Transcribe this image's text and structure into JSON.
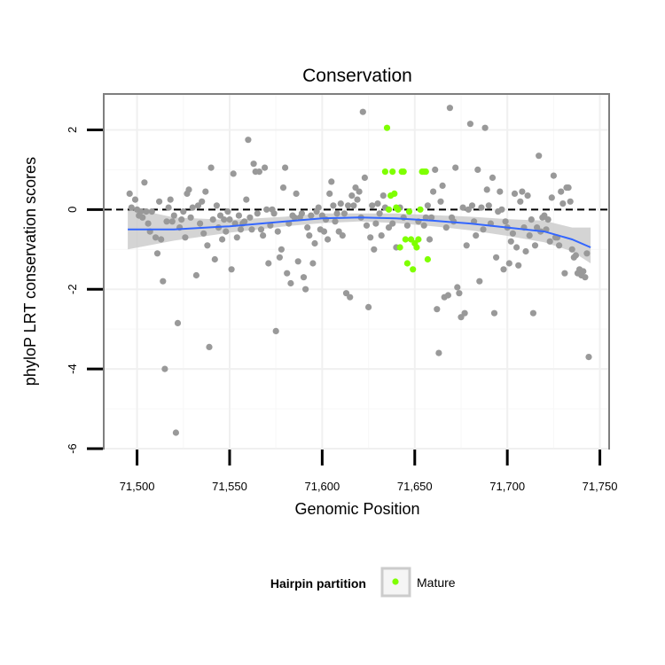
{
  "chart_data": {
    "type": "scatter",
    "title": "Conservation",
    "xlabel": "Genomic Position",
    "ylabel": "phyloP LRT conservation scores",
    "xlim": [
      71482,
      71755
    ],
    "ylim": [
      -6,
      2.9
    ],
    "x_ticks": [
      71500,
      71550,
      71600,
      71650,
      71700,
      71750
    ],
    "x_tick_labels": [
      "71,500",
      "71,550",
      "71,600",
      "71,650",
      "71,700",
      "71,750"
    ],
    "y_ticks": [
      -6,
      -4,
      -2,
      0,
      2
    ],
    "y_tick_labels": [
      "-6",
      "-4",
      "-2",
      "0",
      "2"
    ],
    "reference_line": {
      "y": 0,
      "style": "dashed"
    },
    "grid": true,
    "legend": {
      "title": "Hairpin partition",
      "placement": "bottom",
      "entries": [
        {
          "label": "Mature",
          "color": "#7fff00"
        }
      ]
    },
    "colors": {
      "other": "#999999",
      "mature": "#7fff00",
      "smooth": "#3366ff",
      "ribbon": "#cccccc"
    },
    "series": [
      {
        "points": [
          [
            71496,
            0.4
          ],
          [
            71497,
            0.05
          ],
          [
            71499,
            0.25
          ],
          [
            71500,
            0.0
          ],
          [
            71501,
            -0.15
          ],
          [
            71502,
            -0.05
          ],
          [
            71503,
            -0.2
          ],
          [
            71504,
            0.68
          ],
          [
            71505,
            -0.05
          ],
          [
            71506,
            -0.35
          ],
          [
            71507,
            -0.55
          ],
          [
            71508,
            -0.05
          ],
          [
            71510,
            -0.7
          ],
          [
            71511,
            -1.1
          ],
          [
            71512,
            0.2
          ],
          [
            71513,
            -0.75
          ],
          [
            71514,
            -1.8
          ],
          [
            71515,
            -4.0
          ],
          [
            71516,
            -0.3
          ],
          [
            71517,
            0.05
          ],
          [
            71518,
            0.25
          ],
          [
            71519,
            -0.3
          ],
          [
            71520,
            -0.15
          ],
          [
            71521,
            -5.6
          ],
          [
            71522,
            -2.85
          ],
          [
            71523,
            -0.45
          ],
          [
            71524,
            -0.25
          ],
          [
            71525,
            -0.05
          ],
          [
            71526,
            -0.7
          ],
          [
            71527,
            0.4
          ],
          [
            71528,
            0.5
          ],
          [
            71529,
            -0.2
          ],
          [
            71530,
            0.05
          ],
          [
            71532,
            -1.65
          ],
          [
            71533,
            0.1
          ],
          [
            71534,
            -0.35
          ],
          [
            71535,
            0.2
          ],
          [
            71536,
            -0.6
          ],
          [
            71537,
            0.45
          ],
          [
            71538,
            -0.9
          ],
          [
            71539,
            -3.45
          ],
          [
            71540,
            1.05
          ],
          [
            71541,
            -0.25
          ],
          [
            71542,
            -1.25
          ],
          [
            71543,
            0.1
          ],
          [
            71544,
            -0.45
          ],
          [
            71545,
            -0.15
          ],
          [
            71546,
            -0.75
          ],
          [
            71547,
            -0.25
          ],
          [
            71548,
            -0.55
          ],
          [
            71549,
            -0.05
          ],
          [
            71550,
            -0.25
          ],
          [
            71551,
            -1.5
          ],
          [
            71552,
            0.9
          ],
          [
            71553,
            -0.35
          ],
          [
            71554,
            -0.7
          ],
          [
            71555,
            -0.15
          ],
          [
            71556,
            -0.5
          ],
          [
            71557,
            -0.35
          ],
          [
            71558,
            -0.3
          ],
          [
            71559,
            0.25
          ],
          [
            71560,
            1.75
          ],
          [
            71561,
            -0.2
          ],
          [
            71562,
            -0.5
          ],
          [
            71563,
            1.15
          ],
          [
            71564,
            0.95
          ],
          [
            71565,
            -0.1
          ],
          [
            71566,
            0.95
          ],
          [
            71567,
            -0.5
          ],
          [
            71568,
            -0.65
          ],
          [
            71569,
            1.05
          ],
          [
            71570,
            0.0
          ],
          [
            71571,
            -1.35
          ],
          [
            71572,
            -0.4
          ],
          [
            71573,
            0.0
          ],
          [
            71574,
            -0.1
          ],
          [
            71575,
            -3.05
          ],
          [
            71576,
            -0.55
          ],
          [
            71577,
            -1.2
          ],
          [
            71578,
            -1.0
          ],
          [
            71579,
            0.55
          ],
          [
            71580,
            1.05
          ],
          [
            71581,
            -1.6
          ],
          [
            71582,
            -0.35
          ],
          [
            71583,
            -1.85
          ],
          [
            71584,
            -0.15
          ],
          [
            71585,
            -0.2
          ],
          [
            71586,
            0.4
          ],
          [
            71587,
            -1.3
          ],
          [
            71588,
            -0.2
          ],
          [
            71589,
            -0.1
          ],
          [
            71590,
            -1.7
          ],
          [
            71591,
            -2.0
          ],
          [
            71592,
            -0.45
          ],
          [
            71593,
            -0.65
          ],
          [
            71594,
            -0.15
          ],
          [
            71595,
            -1.35
          ],
          [
            71596,
            -0.85
          ],
          [
            71597,
            -0.05
          ],
          [
            71598,
            0.05
          ],
          [
            71599,
            -0.5
          ],
          [
            71600,
            -0.15
          ],
          [
            71601,
            -0.55
          ],
          [
            71602,
            -0.25
          ],
          [
            71603,
            -0.75
          ],
          [
            71604,
            0.4
          ],
          [
            71605,
            0.7
          ],
          [
            71606,
            0.1
          ],
          [
            71607,
            -0.3
          ],
          [
            71608,
            -0.1
          ],
          [
            71609,
            -0.55
          ],
          [
            71610,
            0.15
          ],
          [
            71611,
            -0.65
          ],
          [
            71612,
            -0.1
          ],
          [
            71613,
            -2.1
          ],
          [
            71614,
            0.1
          ],
          [
            71615,
            -2.2
          ],
          [
            71616,
            0.35
          ],
          [
            71617,
            0.1
          ],
          [
            71618,
            0.55
          ],
          [
            71619,
            0.25
          ],
          [
            71620,
            0.45
          ],
          [
            71621,
            -0.2
          ],
          [
            71622,
            2.45
          ],
          [
            71623,
            0.8
          ],
          [
            71624,
            -0.4
          ],
          [
            71625,
            -2.45
          ],
          [
            71626,
            -0.7
          ],
          [
            71627,
            0.1
          ],
          [
            71628,
            -1.0
          ],
          [
            71629,
            -0.35
          ],
          [
            71630,
            0.15
          ],
          [
            71631,
            -0.1
          ],
          [
            71632,
            -0.65
          ],
          [
            71633,
            0.35
          ],
          [
            71634,
            0.05
          ],
          [
            71636,
            -0.45
          ],
          [
            71638,
            -0.35
          ],
          [
            71640,
            -0.95
          ],
          [
            71642,
            0.05
          ],
          [
            71644,
            -0.2
          ],
          [
            71646,
            -0.4
          ],
          [
            71652,
            -0.3
          ],
          [
            71655,
            -0.4
          ],
          [
            71656,
            -0.2
          ],
          [
            71657,
            0.1
          ],
          [
            71658,
            -0.75
          ],
          [
            71659,
            -0.2
          ],
          [
            71660,
            0.45
          ],
          [
            71661,
            1.0
          ],
          [
            71662,
            -2.5
          ],
          [
            71663,
            -3.6
          ],
          [
            71664,
            0.2
          ],
          [
            71665,
            0.6
          ],
          [
            71666,
            -2.2
          ],
          [
            71667,
            -0.45
          ],
          [
            71668,
            -2.15
          ],
          [
            71669,
            2.55
          ],
          [
            71670,
            -0.2
          ],
          [
            71671,
            -0.3
          ],
          [
            71672,
            1.05
          ],
          [
            71673,
            -1.95
          ],
          [
            71674,
            -2.1
          ],
          [
            71675,
            -2.7
          ],
          [
            71676,
            0.05
          ],
          [
            71677,
            -2.6
          ],
          [
            71678,
            -0.9
          ],
          [
            71679,
            0.0
          ],
          [
            71680,
            2.15
          ],
          [
            71681,
            0.1
          ],
          [
            71682,
            -0.3
          ],
          [
            71683,
            -0.65
          ],
          [
            71684,
            1.0
          ],
          [
            71685,
            -1.8
          ],
          [
            71686,
            0.05
          ],
          [
            71687,
            -0.5
          ],
          [
            71688,
            2.05
          ],
          [
            71689,
            0.5
          ],
          [
            71690,
            0.1
          ],
          [
            71691,
            -0.35
          ],
          [
            71692,
            0.8
          ],
          [
            71693,
            -2.6
          ],
          [
            71694,
            -1.2
          ],
          [
            71695,
            -0.05
          ],
          [
            71696,
            0.45
          ],
          [
            71697,
            0.0
          ],
          [
            71698,
            -1.5
          ],
          [
            71699,
            -0.3
          ],
          [
            71700,
            -0.45
          ],
          [
            71701,
            -1.35
          ],
          [
            71702,
            -0.8
          ],
          [
            71703,
            -0.6
          ],
          [
            71704,
            0.4
          ],
          [
            71705,
            -0.95
          ],
          [
            71706,
            -1.4
          ],
          [
            71707,
            0.2
          ],
          [
            71708,
            0.45
          ],
          [
            71709,
            -0.45
          ],
          [
            71710,
            -1.05
          ],
          [
            71711,
            0.35
          ],
          [
            71712,
            -0.65
          ],
          [
            71713,
            -0.25
          ],
          [
            71714,
            -2.6
          ],
          [
            71715,
            -0.9
          ],
          [
            71716,
            -0.45
          ],
          [
            71717,
            1.35
          ],
          [
            71718,
            -0.55
          ],
          [
            71719,
            -0.2
          ],
          [
            71720,
            -0.15
          ],
          [
            71721,
            -0.5
          ],
          [
            71722,
            -0.25
          ],
          [
            71723,
            -0.8
          ],
          [
            71724,
            0.3
          ],
          [
            71725,
            0.85
          ],
          [
            71726,
            -0.7
          ],
          [
            71727,
            -0.7
          ],
          [
            71728,
            -0.9
          ],
          [
            71729,
            0.45
          ],
          [
            71730,
            0.15
          ],
          [
            71731,
            -1.6
          ],
          [
            71732,
            0.55
          ],
          [
            71733,
            0.55
          ],
          [
            71734,
            0.2
          ],
          [
            71735,
            -1.0
          ],
          [
            71736,
            -1.2
          ],
          [
            71737,
            -1.15
          ],
          [
            71738,
            -1.6
          ],
          [
            71739,
            -1.5
          ],
          [
            71740,
            -1.65
          ],
          [
            71741,
            -1.55
          ],
          [
            71742,
            -1.7
          ],
          [
            71743,
            -1.1
          ],
          [
            71744,
            -3.7
          ]
        ]
      },
      {
        "name": "Mature",
        "points": [
          [
            71634,
            0.95
          ],
          [
            71635,
            2.05
          ],
          [
            71636,
            0.0
          ],
          [
            71637,
            0.35
          ],
          [
            71638,
            0.95
          ],
          [
            71639,
            0.4
          ],
          [
            71640,
            0.05
          ],
          [
            71641,
            0.0
          ],
          [
            71642,
            -0.95
          ],
          [
            71643,
            0.95
          ],
          [
            71644,
            0.95
          ],
          [
            71645,
            -0.75
          ],
          [
            71646,
            -1.35
          ],
          [
            71647,
            -0.05
          ],
          [
            71648,
            -0.75
          ],
          [
            71649,
            -1.5
          ],
          [
            71650,
            -0.85
          ],
          [
            71651,
            -0.95
          ],
          [
            71652,
            -0.75
          ],
          [
            71653,
            0.0
          ],
          [
            71654,
            0.95
          ],
          [
            71655,
            0.95
          ],
          [
            71656,
            0.95
          ],
          [
            71657,
            -1.25
          ]
        ]
      }
    ],
    "smooth": {
      "x": [
        71495,
        71520,
        71550,
        71580,
        71600,
        71620,
        71640,
        71660,
        71680,
        71700,
        71720,
        71735,
        71745
      ],
      "y": [
        -0.5,
        -0.5,
        -0.42,
        -0.3,
        -0.22,
        -0.2,
        -0.22,
        -0.28,
        -0.35,
        -0.45,
        -0.55,
        -0.75,
        -0.95
      ],
      "lower": [
        -1.0,
        -0.78,
        -0.58,
        -0.42,
        -0.34,
        -0.3,
        -0.34,
        -0.42,
        -0.52,
        -0.66,
        -0.82,
        -1.05,
        -1.35
      ],
      "upper": [
        0.05,
        -0.2,
        -0.26,
        -0.18,
        -0.1,
        -0.1,
        -0.1,
        -0.14,
        -0.18,
        -0.24,
        -0.28,
        -0.45,
        -0.45
      ]
    }
  }
}
